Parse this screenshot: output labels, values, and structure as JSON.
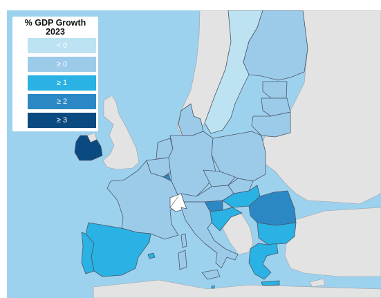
{
  "legend": {
    "title_line1": "% GDP Growth",
    "title_line2": "2023",
    "items": [
      {
        "label": "< 0",
        "color": "#bde2f2"
      },
      {
        "label": "≥ 0",
        "color": "#9ccbea"
      },
      {
        "label": "≥ 1",
        "color": "#29b2e3"
      },
      {
        "label": "≥ 2",
        "color": "#2b88c4"
      },
      {
        "label": "≥ 3",
        "color": "#0a4a80"
      }
    ]
  },
  "colors": {
    "sea": "#9dd2ef",
    "non_eu_land": "#e3e3e3",
    "no_data": "#ffffff",
    "border": "#4c5566"
  }
}
